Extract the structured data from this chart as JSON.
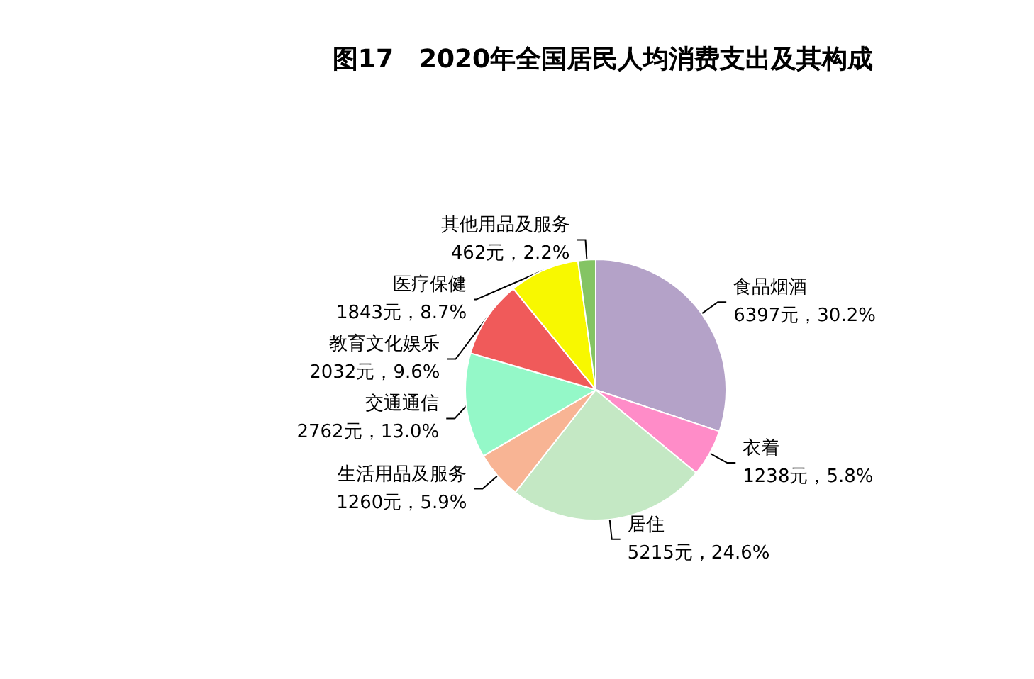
{
  "chart_data": {
    "type": "pie",
    "title": "图17　2020年全国居民人均消费支出及其构成",
    "categories": [
      "食品烟酒",
      "衣着",
      "居住",
      "生活用品及服务",
      "交通通信",
      "教育文化娱乐",
      "医疗保健",
      "其他用品及服务"
    ],
    "values": [
      6397,
      1238,
      5215,
      1260,
      2762,
      2032,
      1843,
      462
    ],
    "value_labels": [
      "6397元，30.2%",
      "1238元，5.8%",
      "5215元，24.6%",
      "1260元，5.9%",
      "2762元，13.0%",
      "2032元，9.6%",
      "1843元，8.7%",
      "462元，2.2%"
    ],
    "colors": [
      "#b4a2c8",
      "#ff8cc8",
      "#c4e8c4",
      "#f8b494",
      "#94f8c8",
      "#f05a5a",
      "#f8f800",
      "#84c464"
    ],
    "legend": false
  }
}
